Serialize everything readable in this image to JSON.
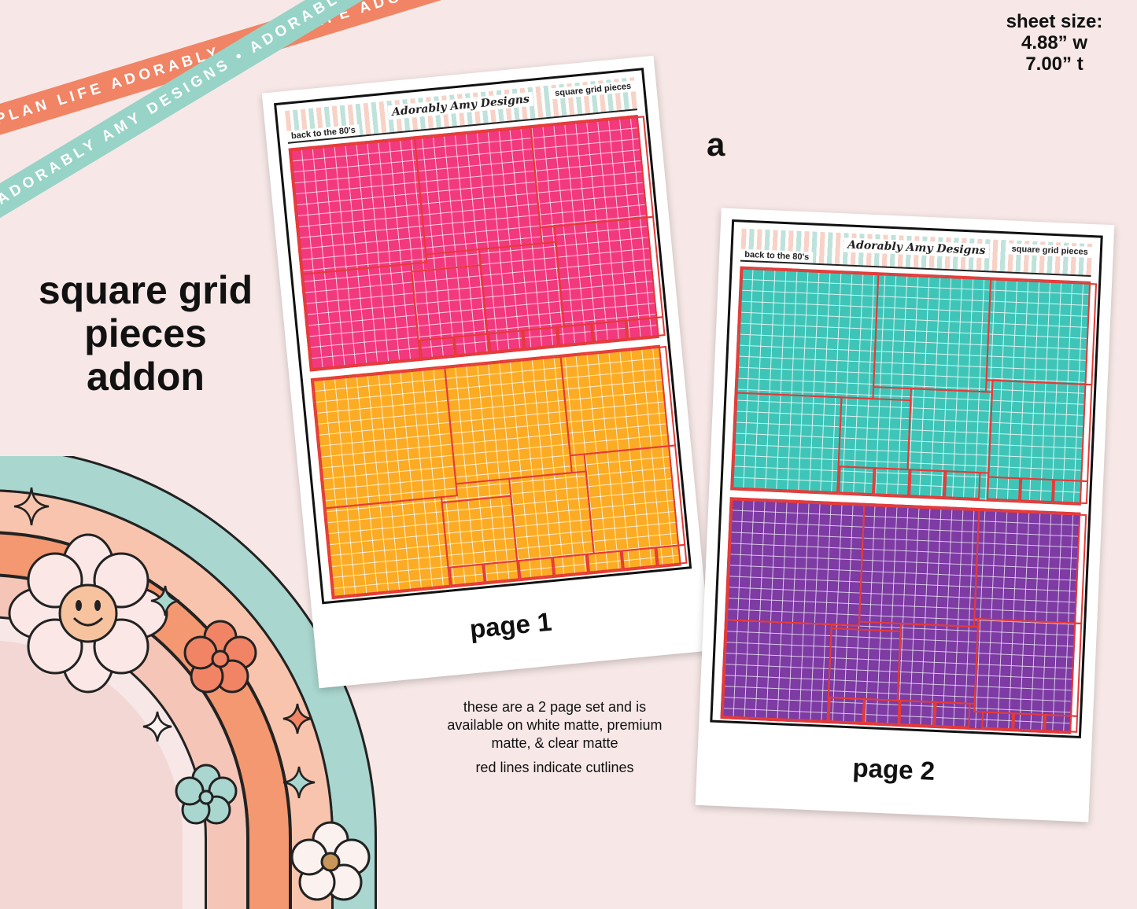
{
  "ribbons": {
    "orange_text": "PLAN LIFE ADORABLY • PLAN LIFE ADORABLY •",
    "mint_text": "ADORABLY AMY DESIGNS • ADORABLY AMY DESIGNS • AD"
  },
  "headline": {
    "line1": "square grid",
    "line2": "pieces",
    "line3": "addon"
  },
  "sheet_size": {
    "line1": "sheet size:",
    "line2": "4.88” w",
    "line3": "7.00” t"
  },
  "variant_letter": "a",
  "sheets": [
    {
      "header_left": "back to the 80's",
      "header_logo": "Adorably Amy Designs",
      "header_right": "square grid pieces",
      "page_label": "page 1",
      "top_color": "#f2397e",
      "bottom_color": "#fcab24"
    },
    {
      "header_left": "back to the 80's",
      "header_logo": "Adorably Amy Designs",
      "header_right": "square grid pieces",
      "page_label": "page 2",
      "top_color": "#3fc5b8",
      "bottom_color": "#7d3ba3"
    }
  ],
  "info": {
    "line1": "these are a 2 page set and is available on white matte, premium matte, & clear matte",
    "line2": "red lines indicate cutlines"
  },
  "colors": {
    "background": "#f7e8e7",
    "cutline": "#e53a38",
    "ribbon_orange": "#f08465",
    "ribbon_mint": "#98d3c8"
  }
}
